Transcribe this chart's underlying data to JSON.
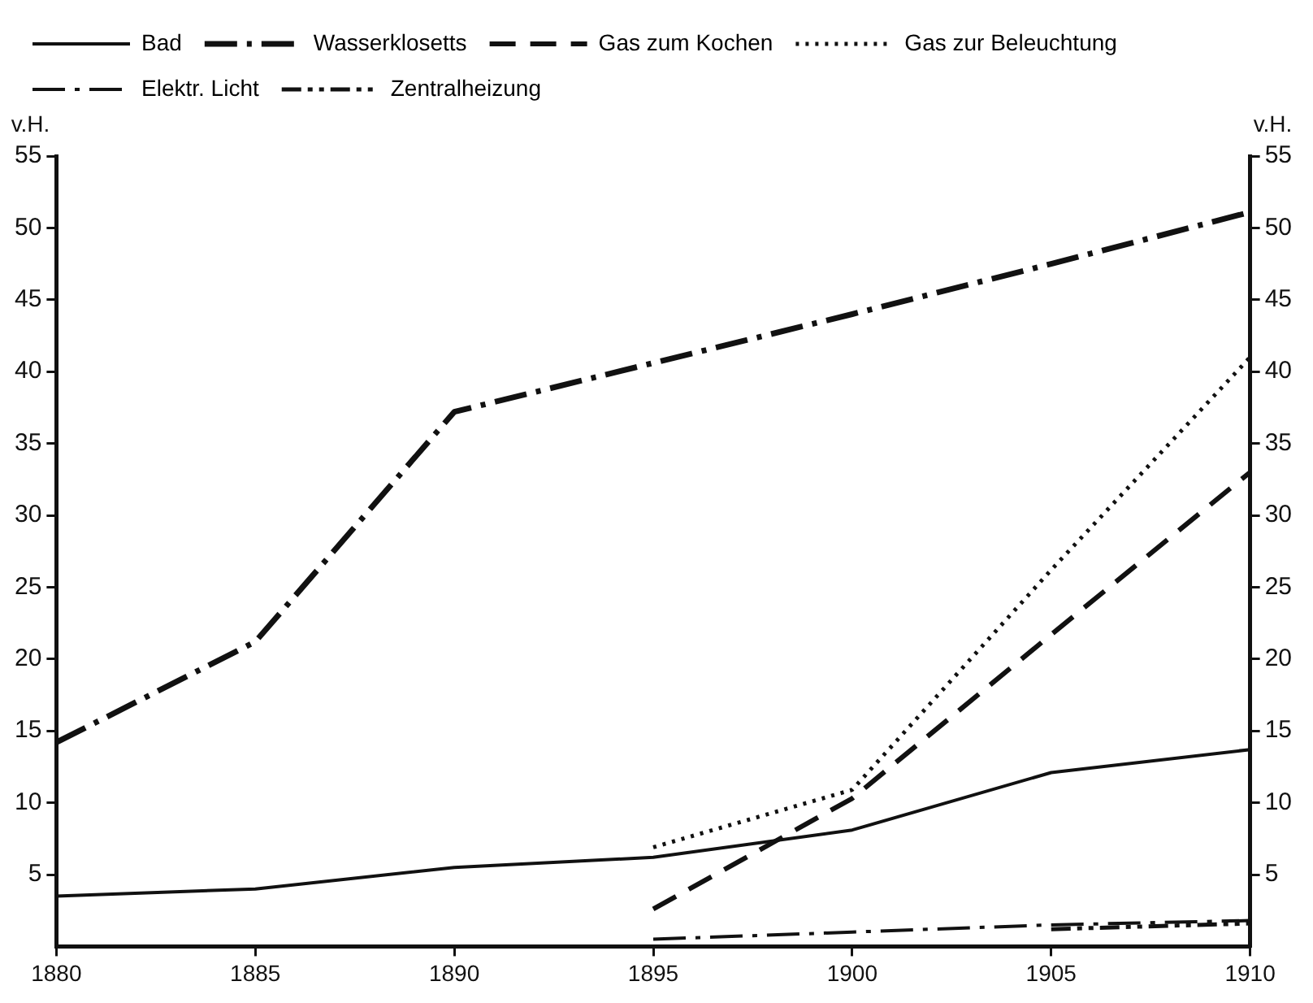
{
  "chart_data": {
    "type": "line",
    "ylabel": "v.H.",
    "y2label": "v.H.",
    "x": [
      1880,
      1885,
      1890,
      1895,
      1900,
      1905,
      1910
    ],
    "xlim": [
      1880,
      1910
    ],
    "xticks": [
      1880,
      1885,
      1890,
      1895,
      1900,
      1905,
      1910
    ],
    "ylim": [
      0,
      55
    ],
    "yticks": [
      5,
      10,
      15,
      20,
      25,
      30,
      35,
      40,
      45,
      50,
      55
    ],
    "y2lim": [
      0,
      55
    ],
    "y2ticks": [
      5,
      10,
      15,
      20,
      25,
      30,
      35,
      40,
      45,
      50,
      55
    ],
    "grid": false,
    "legend": "top left",
    "marker": "none",
    "series": [
      {
        "name": "Bad",
        "color": "#111111",
        "line_style": "solid",
        "values": [
          3.5,
          4.0,
          5.5,
          6.2,
          8.1,
          12.1,
          13.7
        ]
      },
      {
        "name": "Wasserklosetts",
        "color": "#111111",
        "line_style": "dashdot",
        "values": [
          14.2,
          21.2,
          37.2,
          40.6,
          44.0,
          47.5,
          51.1
        ]
      },
      {
        "name": "Gas zum Kochen",
        "color": "#111111",
        "line_style": "dashed",
        "values": [
          null,
          null,
          null,
          2.6,
          10.3,
          21.7,
          33.0
        ]
      },
      {
        "name": "Gas zur Beleuchtung",
        "color": "#111111",
        "line_style": "dotted",
        "values": [
          null,
          null,
          null,
          6.9,
          10.9,
          26.2,
          41.0
        ]
      },
      {
        "name": "Elektr. Licht",
        "color": "#111111",
        "line_style": "dashdot",
        "values": [
          null,
          null,
          null,
          0.5,
          1.0,
          1.5,
          1.8
        ]
      },
      {
        "name": "Zentralheizung",
        "color": "#111111",
        "line_style": "dashdotdot",
        "values": [
          null,
          null,
          null,
          null,
          null,
          1.2,
          1.6
        ]
      }
    ]
  }
}
